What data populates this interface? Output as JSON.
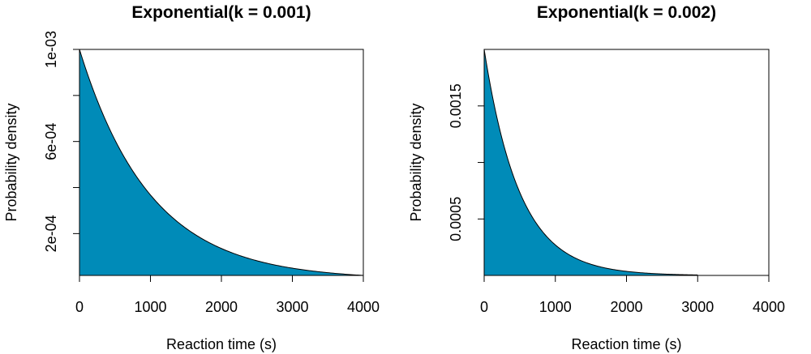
{
  "colors": {
    "fill": "#008bb8",
    "line": "#000000",
    "background": "#ffffff"
  },
  "chart_data": [
    {
      "type": "area",
      "title": "Exponential(k = 0.001)",
      "xlabel": "Reaction time (s)",
      "ylabel": "Probability density",
      "rate": 0.001,
      "x": [
        0,
        500,
        1000,
        1500,
        2000,
        2500,
        3000,
        3500,
        4000
      ],
      "y": [
        0.001,
        0.000607,
        0.000368,
        0.000223,
        0.000135,
        8.21e-05,
        4.98e-05,
        3.02e-05,
        1.83e-05
      ],
      "xlim": [
        0,
        4000
      ],
      "ylim": [
        1.83e-05,
        0.001
      ],
      "xticks": [
        0,
        1000,
        2000,
        3000,
        4000
      ],
      "xtick_labels": [
        "0",
        "1000",
        "2000",
        "3000",
        "4000"
      ],
      "yticks": [
        0.0002,
        0.0004,
        0.0006,
        0.0008,
        0.001
      ],
      "ytick_labels": [
        "2e-04",
        "",
        "6e-04",
        "",
        "1e-03"
      ],
      "grid": false
    },
    {
      "type": "area",
      "title": "Exponential(k = 0.002)",
      "xlabel": "Reaction time (s)",
      "ylabel": "Probability density",
      "rate": 0.002,
      "x": [
        0,
        500,
        1000,
        1500,
        2000,
        2500,
        3000
      ],
      "y": [
        0.002,
        0.000736,
        0.000271,
        9.96e-05,
        3.66e-05,
        1.35e-05,
        4.96e-06
      ],
      "xlim": [
        0,
        4000
      ],
      "ylim": [
        7e-07,
        0.002
      ],
      "xticks": [
        0,
        1000,
        2000,
        3000,
        4000
      ],
      "xtick_labels": [
        "0",
        "1000",
        "2000",
        "3000",
        "4000"
      ],
      "yticks": [
        0.0005,
        0.001,
        0.0015
      ],
      "ytick_labels": [
        "0.0005",
        "",
        "0.0015"
      ],
      "grid": false
    }
  ]
}
